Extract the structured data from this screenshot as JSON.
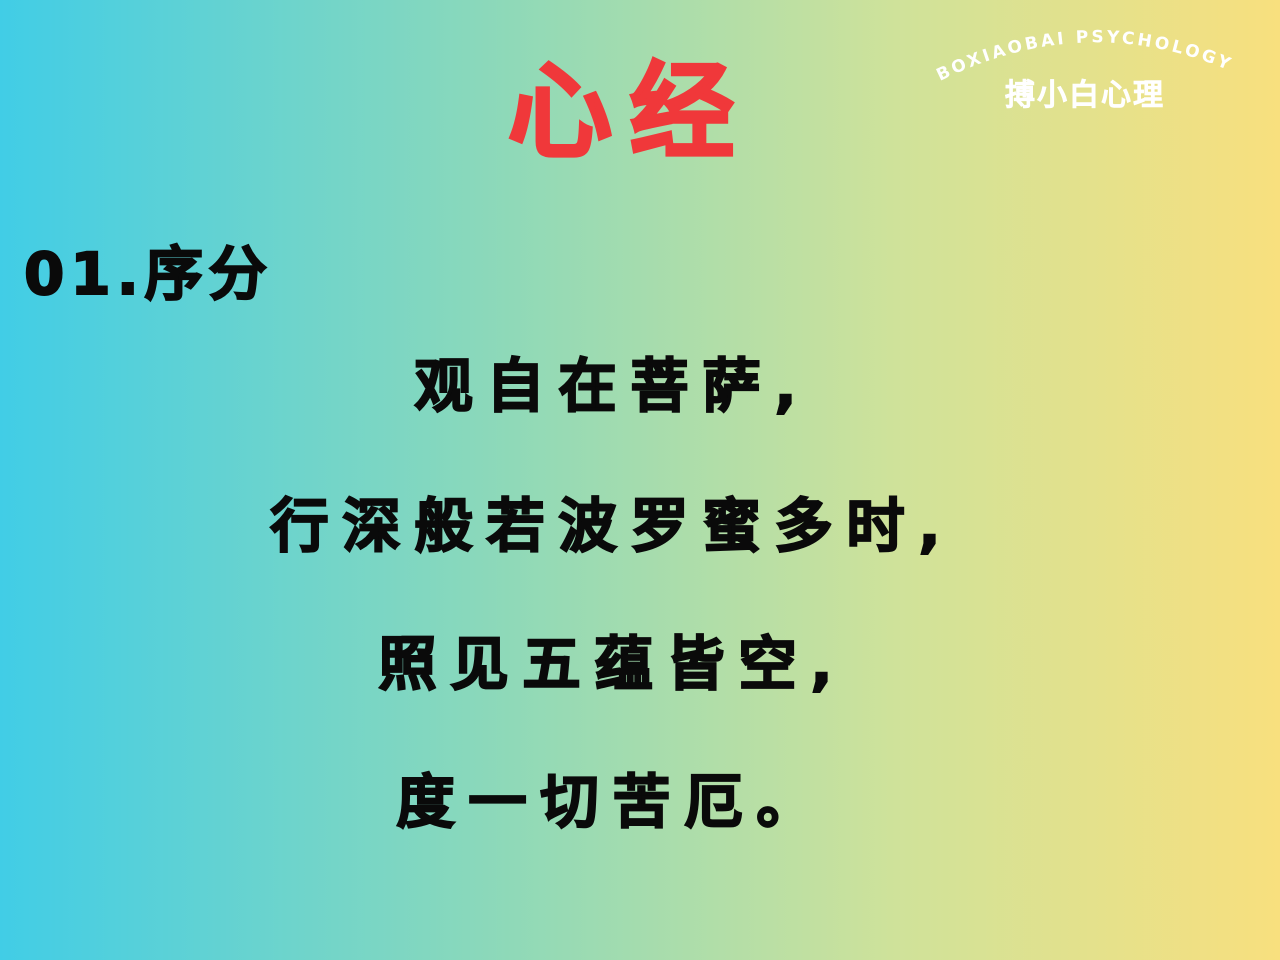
{
  "background": {
    "gradient_colors": [
      "#41cde6",
      "#8fd9b8",
      "#cfe29a",
      "#f8e07e"
    ]
  },
  "brand": {
    "arc_text": "BOXIAOBAI PSYCHOLOGY",
    "name": "搏小白心理"
  },
  "title": {
    "text": "心经",
    "color": "#f0383a"
  },
  "section": {
    "label": "01.序分"
  },
  "verses": [
    "观自在菩萨,",
    "行深般若波罗蜜多时,",
    "照见五蕴皆空,",
    "度一切苦厄。"
  ]
}
